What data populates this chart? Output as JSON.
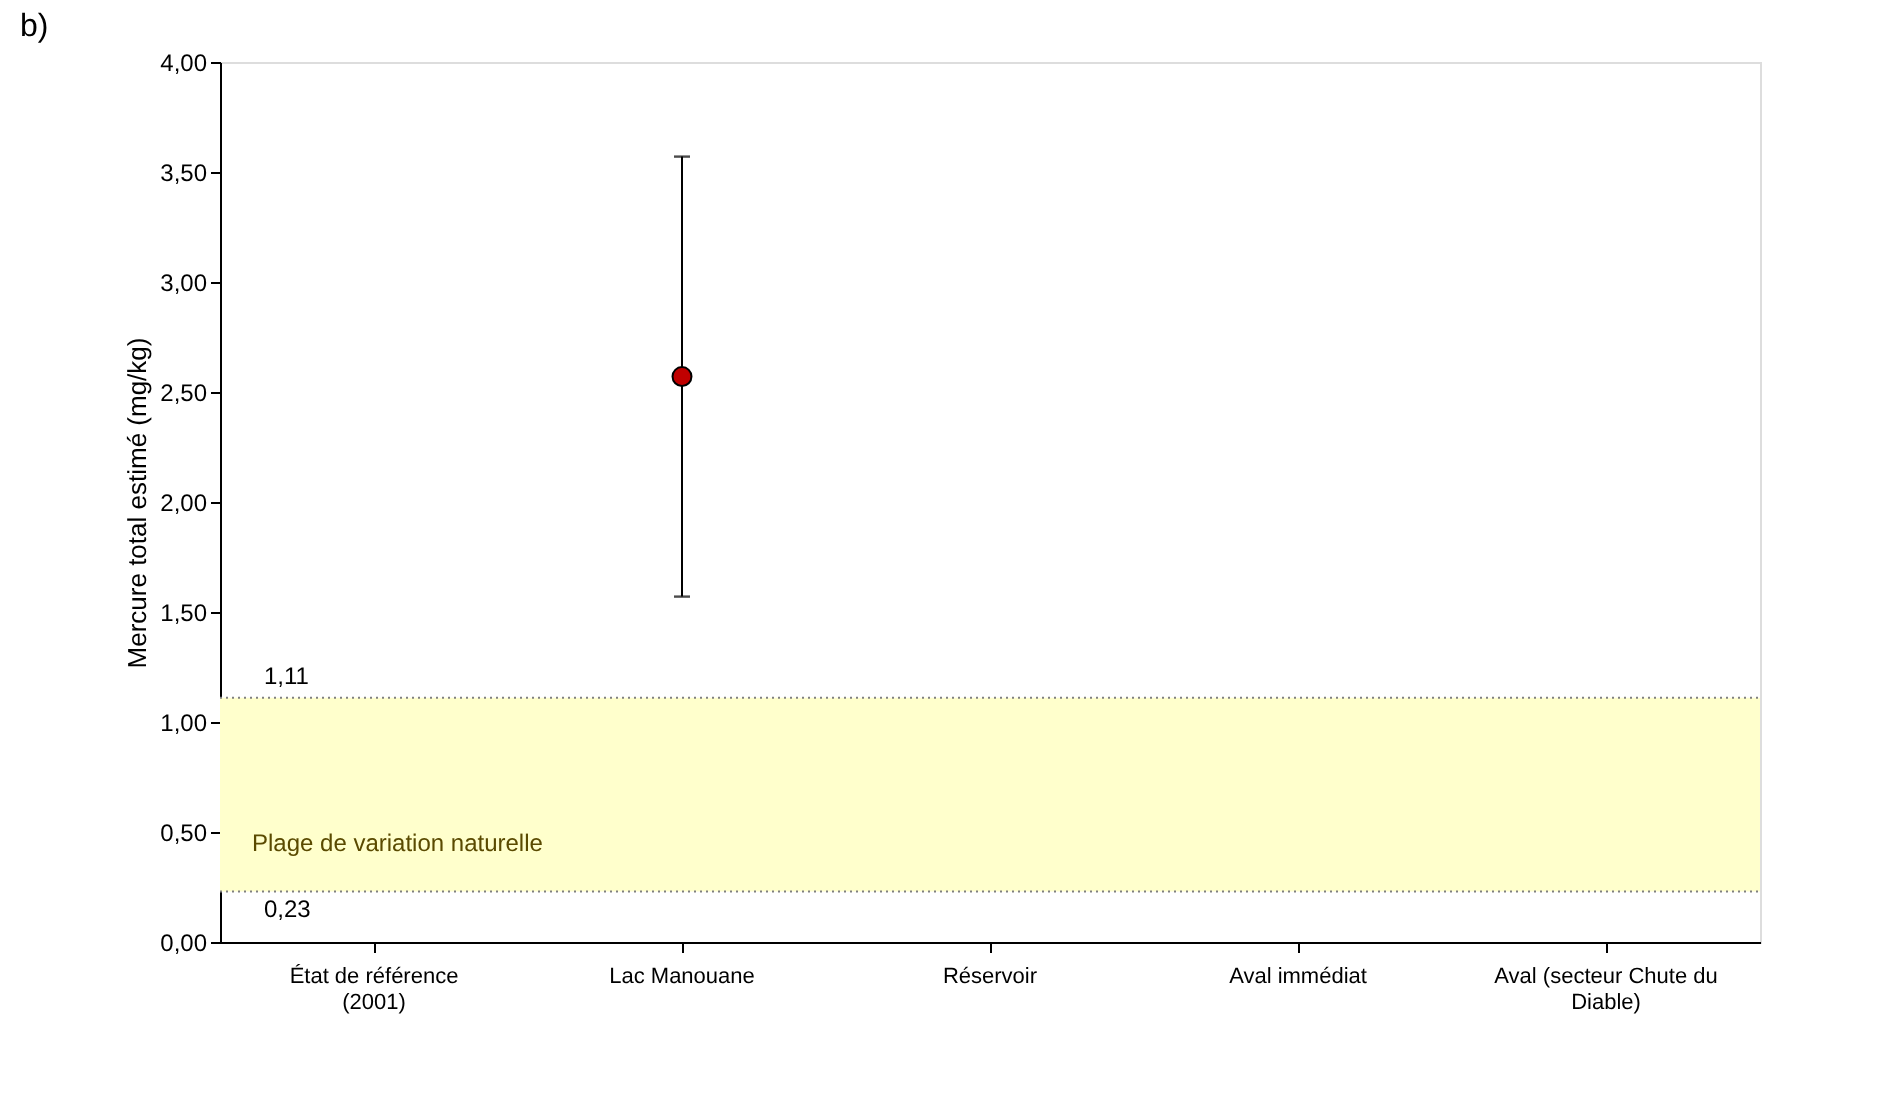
{
  "chart_data": {
    "type": "scatter",
    "title": "b)",
    "ylabel": "Mercure total estimé (mg/kg)",
    "categories": [
      "État de référence (2001)",
      "Lac Manouane",
      "Réservoir",
      "Aval immédiat",
      "Aval (secteur Chute du Diable)"
    ],
    "series": [
      {
        "color": "#c00000",
        "values": [
          null,
          2.57,
          null,
          null,
          null
        ],
        "errors": [
          null,
          [
            1.57,
            3.57
          ],
          null,
          null,
          null
        ]
      }
    ],
    "ylim": [
      0,
      4
    ],
    "yticks": [
      {
        "value": 0,
        "label": "0,00"
      },
      {
        "value": 0.5,
        "label": "0,50"
      },
      {
        "value": 1,
        "label": "1,00"
      },
      {
        "value": 1.5,
        "label": "1,50"
      },
      {
        "value": 2,
        "label": "2,00"
      },
      {
        "value": 2.5,
        "label": "2,50"
      },
      {
        "value": 3,
        "label": "3,00"
      },
      {
        "value": 3.5,
        "label": "3,50"
      },
      {
        "value": 4,
        "label": "4,00"
      }
    ],
    "bands": [
      {
        "axis": "y",
        "from": 0.23,
        "to": 1.11,
        "label": "Plage de variation naturelle",
        "color": "#ffffcc"
      }
    ],
    "ref_lines": [
      {
        "axis": "y",
        "value": 1.11,
        "label": "1,11",
        "color": "#808080",
        "line_style": "dotted"
      },
      {
        "axis": "y",
        "value": 0.23,
        "label": "0,23",
        "color": "#808080",
        "line_style": "dotted"
      }
    ],
    "marker": "circle",
    "grid": false
  }
}
